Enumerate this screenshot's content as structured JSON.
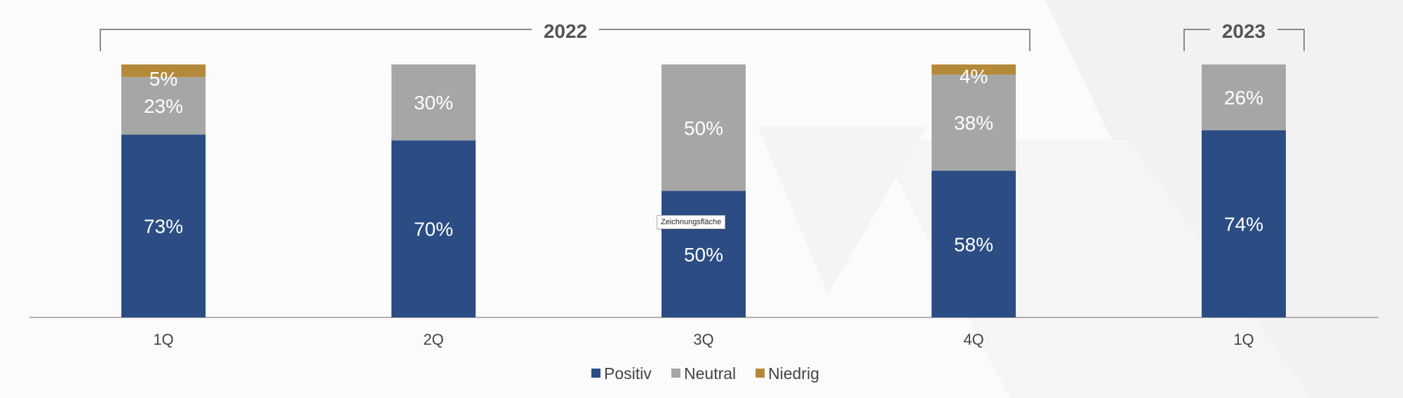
{
  "chart_data": {
    "type": "bar",
    "stacked": true,
    "normalized": true,
    "categories": [
      "1Q",
      "2Q",
      "3Q",
      "4Q",
      "1Q"
    ],
    "groups": [
      {
        "label": "2022",
        "categories": [
          0,
          1,
          2,
          3
        ]
      },
      {
        "label": "2023",
        "categories": [
          4
        ]
      }
    ],
    "series": [
      {
        "name": "Positiv",
        "color": "#2b4d84",
        "values": [
          73,
          70,
          50,
          58,
          74
        ]
      },
      {
        "name": "Neutral",
        "color": "#a6a6a6",
        "values": [
          23,
          30,
          50,
          38,
          26
        ]
      },
      {
        "name": "Niedrig",
        "color": "#b5893a",
        "values": [
          5,
          0,
          0,
          4,
          0
        ]
      }
    ],
    "data_labels": [
      [
        "73%",
        "70%",
        "50%",
        "58%",
        "74%"
      ],
      [
        "23%",
        "30%",
        "50%",
        "38%",
        "26%"
      ],
      [
        "5%",
        "",
        "",
        "4%",
        ""
      ]
    ],
    "ylim": [
      0,
      100
    ],
    "legend_position": "bottom-center",
    "grid": false
  },
  "tooltip": {
    "text": "Zeichnungsfläche"
  }
}
